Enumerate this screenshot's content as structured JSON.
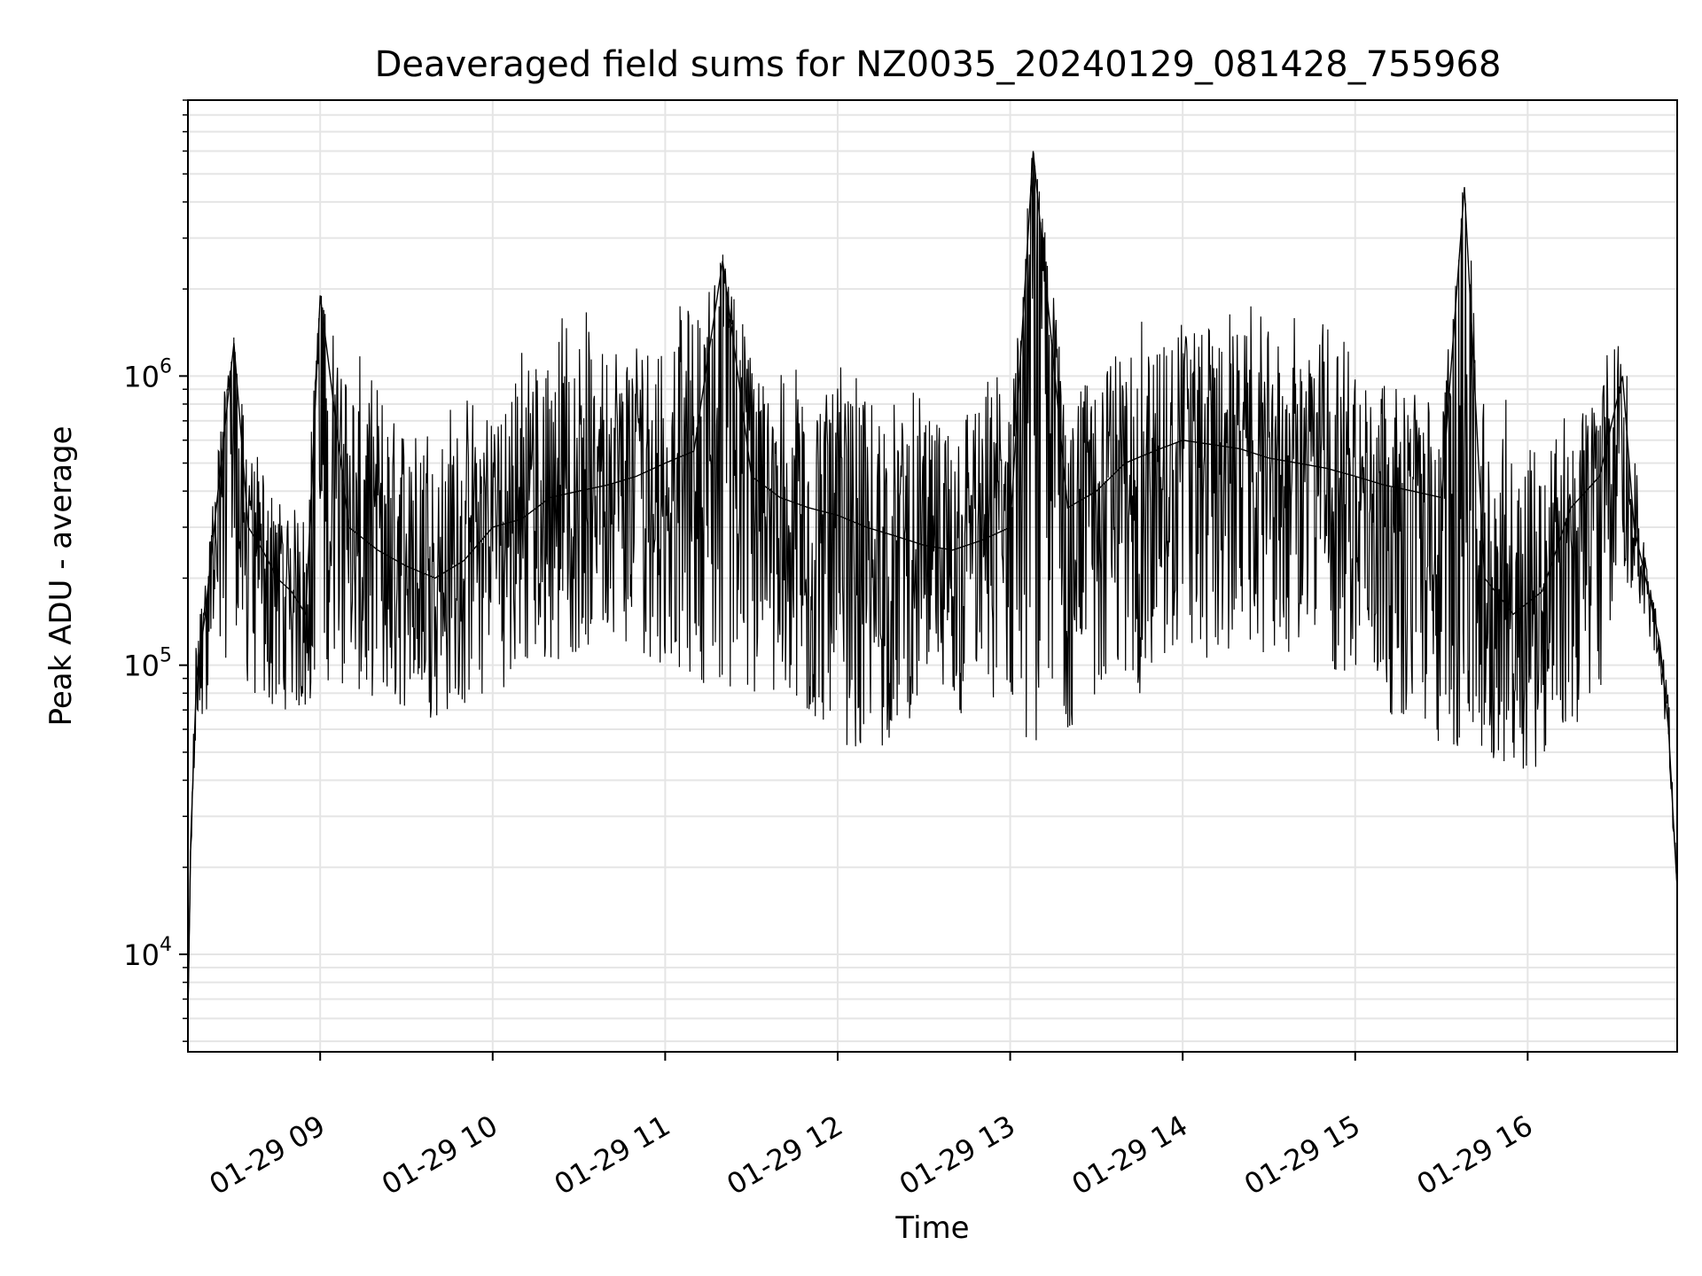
{
  "chart_data": {
    "type": "line",
    "title": "Deaveraged field sums for NZ0035_20240129_081428_755968",
    "xlabel": "Time",
    "ylabel": "Peak ADU - average",
    "yscale": "log",
    "ylim": [
      4600,
      9000000
    ],
    "xlim": [
      "2024-01-29 08:14",
      "2024-01-29 16:52"
    ],
    "grid": true,
    "line_color": "#000000",
    "grid_color": "#e5e5e5",
    "x_ticks": [
      "2024-01-29 09:00",
      "2024-01-29 10:00",
      "2024-01-29 11:00",
      "2024-01-29 12:00",
      "2024-01-29 13:00",
      "2024-01-29 14:00",
      "2024-01-29 15:00",
      "2024-01-29 16:00"
    ],
    "x_tick_labels": [
      "01-29 09",
      "01-29 10",
      "01-29 11",
      "01-29 12",
      "01-29 13",
      "01-29 14",
      "01-29 15",
      "01-29 16"
    ],
    "y_ticks": [
      {
        "value": 10000,
        "base": "10",
        "exp": "4"
      },
      {
        "value": 100000,
        "base": "10",
        "exp": "5"
      },
      {
        "value": 1000000,
        "base": "10",
        "exp": "6"
      }
    ],
    "series": [
      {
        "x": [
          "2024-01-29 08:14",
          "2024-01-29 08:15",
          "2024-01-29 08:17",
          "2024-01-29 08:20",
          "2024-01-29 08:25",
          "2024-01-29 08:30",
          "2024-01-29 08:35",
          "2024-01-29 08:40",
          "2024-01-29 08:45",
          "2024-01-29 08:50",
          "2024-01-29 08:55",
          "2024-01-29 09:00",
          "2024-01-29 09:10",
          "2024-01-29 09:20",
          "2024-01-29 09:30",
          "2024-01-29 09:40",
          "2024-01-29 09:50",
          "2024-01-29 10:00",
          "2024-01-29 10:10",
          "2024-01-29 10:20",
          "2024-01-29 10:30",
          "2024-01-29 10:40",
          "2024-01-29 10:50",
          "2024-01-29 11:00",
          "2024-01-29 11:10",
          "2024-01-29 11:20",
          "2024-01-29 11:30",
          "2024-01-29 11:40",
          "2024-01-29 11:50",
          "2024-01-29 12:00",
          "2024-01-29 12:10",
          "2024-01-29 12:20",
          "2024-01-29 12:30",
          "2024-01-29 12:40",
          "2024-01-29 12:50",
          "2024-01-29 13:00",
          "2024-01-29 13:08",
          "2024-01-29 13:20",
          "2024-01-29 13:30",
          "2024-01-29 13:40",
          "2024-01-29 13:50",
          "2024-01-29 14:00",
          "2024-01-29 14:10",
          "2024-01-29 14:20",
          "2024-01-29 14:30",
          "2024-01-29 14:40",
          "2024-01-29 14:50",
          "2024-01-29 15:00",
          "2024-01-29 15:10",
          "2024-01-29 15:20",
          "2024-01-29 15:30",
          "2024-01-29 15:38",
          "2024-01-29 15:45",
          "2024-01-29 15:55",
          "2024-01-29 16:05",
          "2024-01-29 16:15",
          "2024-01-29 16:25",
          "2024-01-29 16:33",
          "2024-01-29 16:37",
          "2024-01-29 16:42",
          "2024-01-29 16:46",
          "2024-01-29 16:49",
          "2024-01-29 16:51",
          "2024-01-29 16:52"
        ],
        "y": [
          6000,
          25000,
          90000,
          150000,
          450000,
          1300000,
          300000,
          250000,
          200000,
          180000,
          150000,
          1900000,
          300000,
          250000,
          220000,
          200000,
          230000,
          300000,
          320000,
          380000,
          400000,
          420000,
          450000,
          500000,
          550000,
          2500000,
          450000,
          380000,
          350000,
          330000,
          300000,
          280000,
          260000,
          250000,
          270000,
          300000,
          6000000,
          350000,
          400000,
          500000,
          550000,
          600000,
          580000,
          560000,
          520000,
          500000,
          480000,
          450000,
          420000,
          400000,
          380000,
          4500000,
          200000,
          150000,
          180000,
          350000,
          450000,
          1000000,
          300000,
          180000,
          120000,
          60000,
          25000,
          17000
        ],
        "low": [
          6000,
          20000,
          60000,
          60000,
          80000,
          150000,
          80000,
          70000,
          70000,
          70000,
          65000,
          90000,
          80000,
          75000,
          70000,
          65000,
          70000,
          80000,
          90000,
          100000,
          110000,
          120000,
          110000,
          100000,
          90000,
          80000,
          70000,
          65000,
          60000,
          60000,
          40000,
          60000,
          70000,
          60000,
          60000,
          70000,
          50000,
          60000,
          70000,
          75000,
          80000,
          90000,
          100000,
          110000,
          110000,
          100000,
          90000,
          80000,
          70000,
          60000,
          50000,
          45000,
          40000,
          42000,
          45000,
          55000,
          80000,
          200000,
          180000,
          130000,
          90000,
          50000,
          22000,
          17000
        ],
        "high": [
          6000,
          30000,
          150000,
          200000,
          700000,
          1400000,
          600000,
          500000,
          450000,
          420000,
          400000,
          2000000,
          1300000,
          1000000,
          900000,
          800000,
          900000,
          1000000,
          1400000,
          1900000,
          1800000,
          1600000,
          1600000,
          1700000,
          1900000,
          2700000,
          1500000,
          1300000,
          1100000,
          1100000,
          1000000,
          900000,
          900000,
          900000,
          1000000,
          1200000,
          6500000,
          1000000,
          1300000,
          1500000,
          1600000,
          2000000,
          1800000,
          1800000,
          1700000,
          1600000,
          1700000,
          1400000,
          1200000,
          1000000,
          900000,
          5000000,
          900000,
          850000,
          800000,
          850000,
          1000000,
          1800000,
          600000,
          200000,
          140000,
          80000,
          30000,
          17000
        ]
      }
    ]
  }
}
